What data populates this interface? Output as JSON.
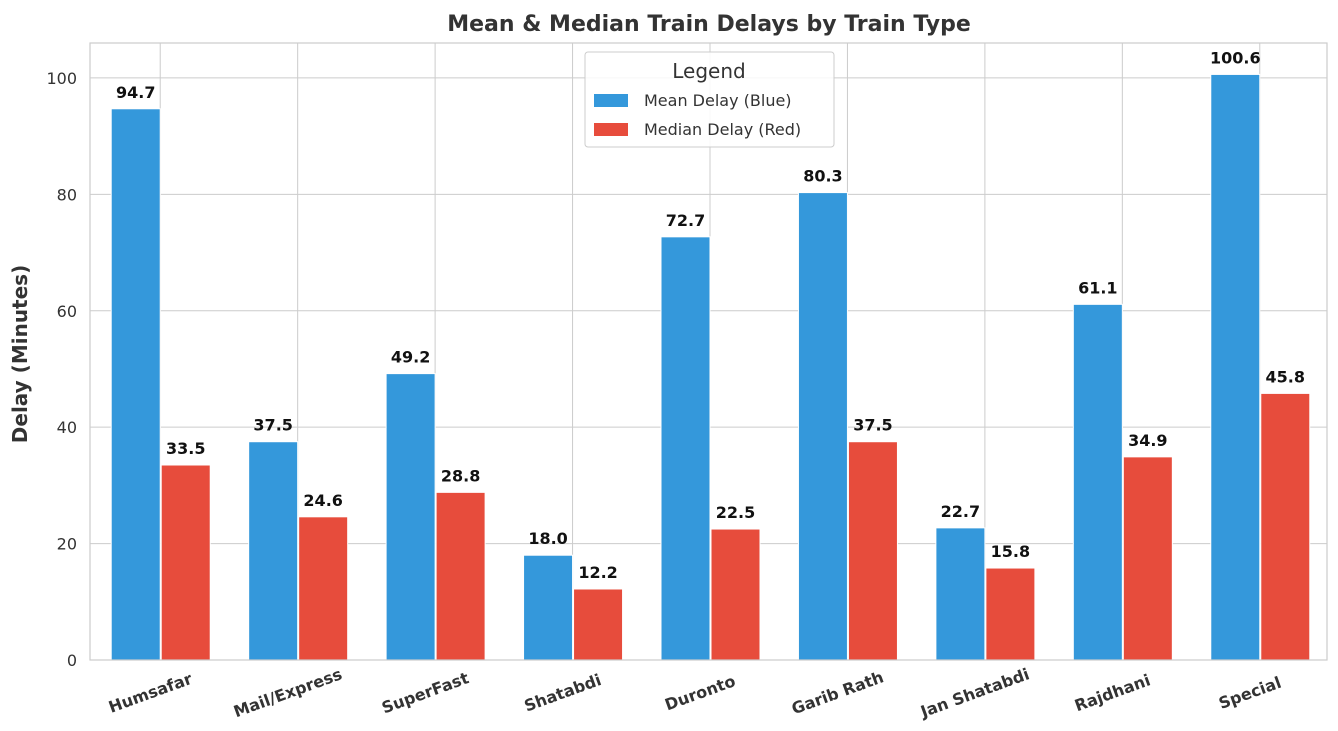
{
  "chart_data": {
    "type": "bar",
    "title": "Mean & Median Train Delays by Train Type",
    "xlabel": "",
    "ylabel": "Delay (Minutes)",
    "ylim": [
      0,
      106
    ],
    "yticks": [
      0,
      20,
      40,
      60,
      80,
      100
    ],
    "grid": true,
    "categories": [
      "Humsafar",
      "Mail/Express",
      "SuperFast",
      "Shatabdi",
      "Duronto",
      "Garib Rath",
      "Jan Shatabdi",
      "Rajdhani",
      "Special"
    ],
    "series": [
      {
        "name": "Mean Delay (Blue)",
        "color": "#3498db",
        "values": [
          94.7,
          37.5,
          49.2,
          18.0,
          72.7,
          80.3,
          22.7,
          61.1,
          100.6
        ],
        "labels": [
          "94.7",
          "37.5",
          "49.2",
          "18.0",
          "72.7",
          "80.3",
          "22.7",
          "61.1",
          "100.6"
        ]
      },
      {
        "name": "Median Delay (Red)",
        "color": "#e74c3c",
        "values": [
          33.5,
          24.6,
          28.8,
          12.2,
          22.5,
          37.5,
          15.8,
          34.9,
          45.8
        ],
        "labels": [
          "33.5",
          "24.6",
          "28.8",
          "12.2",
          "22.5",
          "37.5",
          "15.8",
          "34.9",
          "45.8"
        ]
      }
    ],
    "legend": {
      "title": "Legend",
      "placement": "top-center"
    }
  }
}
